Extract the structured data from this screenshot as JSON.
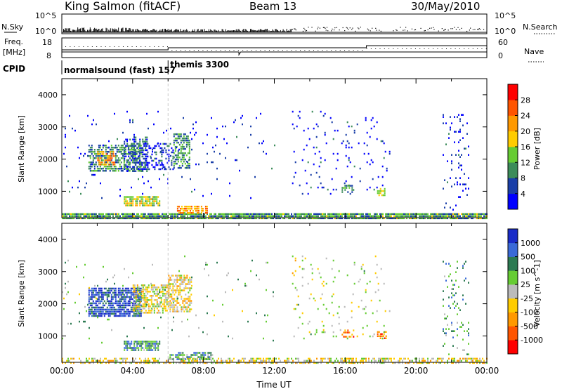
{
  "header": {
    "radar": "King Salmon (fitACF)",
    "beam": "Beam 13",
    "date": "30/May/2010"
  },
  "colors": {
    "power_scale": [
      "#0000ff",
      "#1a3fa8",
      "#3c8c5a",
      "#66cc33",
      "#ffcc00",
      "#ff9900",
      "#ff5500",
      "#ff0000"
    ],
    "velocity_scale": [
      "#1a2cc8",
      "#3a6ad8",
      "#2c7a52",
      "#66cc33",
      "#bbbbbb",
      "#ffcc00",
      "#ff9900",
      "#ff5500",
      "#ff0000"
    ]
  },
  "top_panels": {
    "nsky_label": "N.Sky",
    "nsearch_label": "N.Search",
    "nsky_ticks": [
      "10^5",
      "10^0"
    ],
    "nsearch_ticks": [
      "10^5",
      "10^0"
    ],
    "freq_label": "Freq.",
    "freq_unit": "[MHz]",
    "freq_ticks": [
      "18",
      "8"
    ],
    "nave_label": "Nave",
    "nave_ticks": [
      "60",
      "0"
    ],
    "cpid_label": "CPID",
    "cpid_segments": [
      {
        "name": "normalsound (fast) 157",
        "start_h": 0,
        "end_h": 6.0
      },
      {
        "name": "themis 3300",
        "start_h": 6.0,
        "end_h": 24.0
      }
    ]
  },
  "chart_data": [
    {
      "type": "heatmap",
      "title": "Power",
      "ylabel": "Slant Range [km]",
      "xlim_h": [
        0,
        24
      ],
      "ylim": [
        180,
        4500
      ],
      "yticks": [
        1000,
        2000,
        3000,
        4000
      ],
      "colorbar": {
        "label": "Power [dB]",
        "ticks": [
          4,
          8,
          12,
          16,
          20,
          24,
          28
        ],
        "range": [
          0,
          32
        ]
      },
      "regions": [
        {
          "t0": 0.0,
          "t1": 24.0,
          "r0": 180,
          "r1": 320,
          "level": 0.35,
          "density": 0.9
        },
        {
          "t0": 1.5,
          "t1": 4.5,
          "r0": 1600,
          "r1": 2450,
          "level": 0.3,
          "density": 0.6
        },
        {
          "t0": 2.0,
          "t1": 3.0,
          "r0": 1850,
          "r1": 2250,
          "level": 0.7,
          "density": 0.55
        },
        {
          "t0": 3.5,
          "t1": 4.8,
          "r0": 1650,
          "r1": 2700,
          "level": 0.2,
          "density": 0.5
        },
        {
          "t0": 4.5,
          "t1": 6.3,
          "r0": 1700,
          "r1": 2500,
          "level": 0.15,
          "density": 0.35
        },
        {
          "t0": 6.3,
          "t1": 7.2,
          "r0": 1750,
          "r1": 2800,
          "level": 0.3,
          "density": 0.55
        },
        {
          "t0": 3.5,
          "t1": 5.5,
          "r0": 550,
          "r1": 850,
          "level": 0.5,
          "density": 0.8
        },
        {
          "t0": 6.5,
          "t1": 8.2,
          "r0": 300,
          "r1": 550,
          "level": 0.65,
          "density": 0.7
        },
        {
          "t0": 15.8,
          "t1": 16.5,
          "r0": 950,
          "r1": 1200,
          "level": 0.3,
          "density": 0.5
        },
        {
          "t0": 17.8,
          "t1": 18.2,
          "r0": 850,
          "r1": 1100,
          "level": 0.55,
          "density": 0.6
        },
        {
          "t0": 13.0,
          "t1": 18.5,
          "r0": 900,
          "r1": 3500,
          "level": 0.1,
          "density": 0.04
        },
        {
          "t0": 21.5,
          "t1": 23.0,
          "r0": 400,
          "r1": 3400,
          "level": 0.1,
          "density": 0.1
        },
        {
          "t0": 0.0,
          "t1": 12.0,
          "r0": 800,
          "r1": 3500,
          "level": 0.1,
          "density": 0.02
        }
      ]
    },
    {
      "type": "heatmap",
      "title": "Velocity",
      "ylabel": "Slant Range [km]",
      "xlabel": "Time UT",
      "xlim_h": [
        0,
        24
      ],
      "xticks": [
        "00:00",
        "04:00",
        "08:00",
        "12:00",
        "16:00",
        "20:00",
        "00:00"
      ],
      "ylim": [
        180,
        4500
      ],
      "yticks": [
        1000,
        2000,
        3000,
        4000
      ],
      "colorbar": {
        "label": "Velocity [m s^-1]",
        "ticks": [
          1000,
          500,
          100,
          25,
          -25,
          -100,
          -500,
          -1000
        ]
      },
      "regions": [
        {
          "t0": 0.0,
          "t1": 24.0,
          "r0": 180,
          "r1": 320,
          "level": 0.45,
          "density": 0.5
        },
        {
          "t0": 1.5,
          "t1": 4.5,
          "r0": 1600,
          "r1": 2500,
          "level": 0.88,
          "density": 0.75
        },
        {
          "t0": 4.0,
          "t1": 6.0,
          "r0": 1700,
          "r1": 2600,
          "level": 0.48,
          "density": 0.6
        },
        {
          "t0": 6.0,
          "t1": 7.3,
          "r0": 1750,
          "r1": 2900,
          "level": 0.42,
          "density": 0.6
        },
        {
          "t0": 3.5,
          "t1": 5.5,
          "r0": 550,
          "r1": 850,
          "level": 0.72,
          "density": 0.8
        },
        {
          "t0": 6.0,
          "t1": 8.5,
          "r0": 250,
          "r1": 500,
          "level": 0.68,
          "density": 0.6
        },
        {
          "t0": 15.8,
          "t1": 16.5,
          "r0": 950,
          "r1": 1200,
          "level": 0.25,
          "density": 0.5
        },
        {
          "t0": 17.8,
          "t1": 18.3,
          "r0": 900,
          "r1": 1150,
          "level": 0.25,
          "density": 0.55
        },
        {
          "t0": 13.0,
          "t1": 18.5,
          "r0": 900,
          "r1": 3500,
          "level": 0.5,
          "density": 0.04
        },
        {
          "t0": 21.5,
          "t1": 23.0,
          "r0": 400,
          "r1": 3400,
          "level": 0.7,
          "density": 0.1
        },
        {
          "t0": 0.0,
          "t1": 12.0,
          "r0": 800,
          "r1": 3500,
          "level": 0.6,
          "density": 0.02
        }
      ]
    }
  ]
}
